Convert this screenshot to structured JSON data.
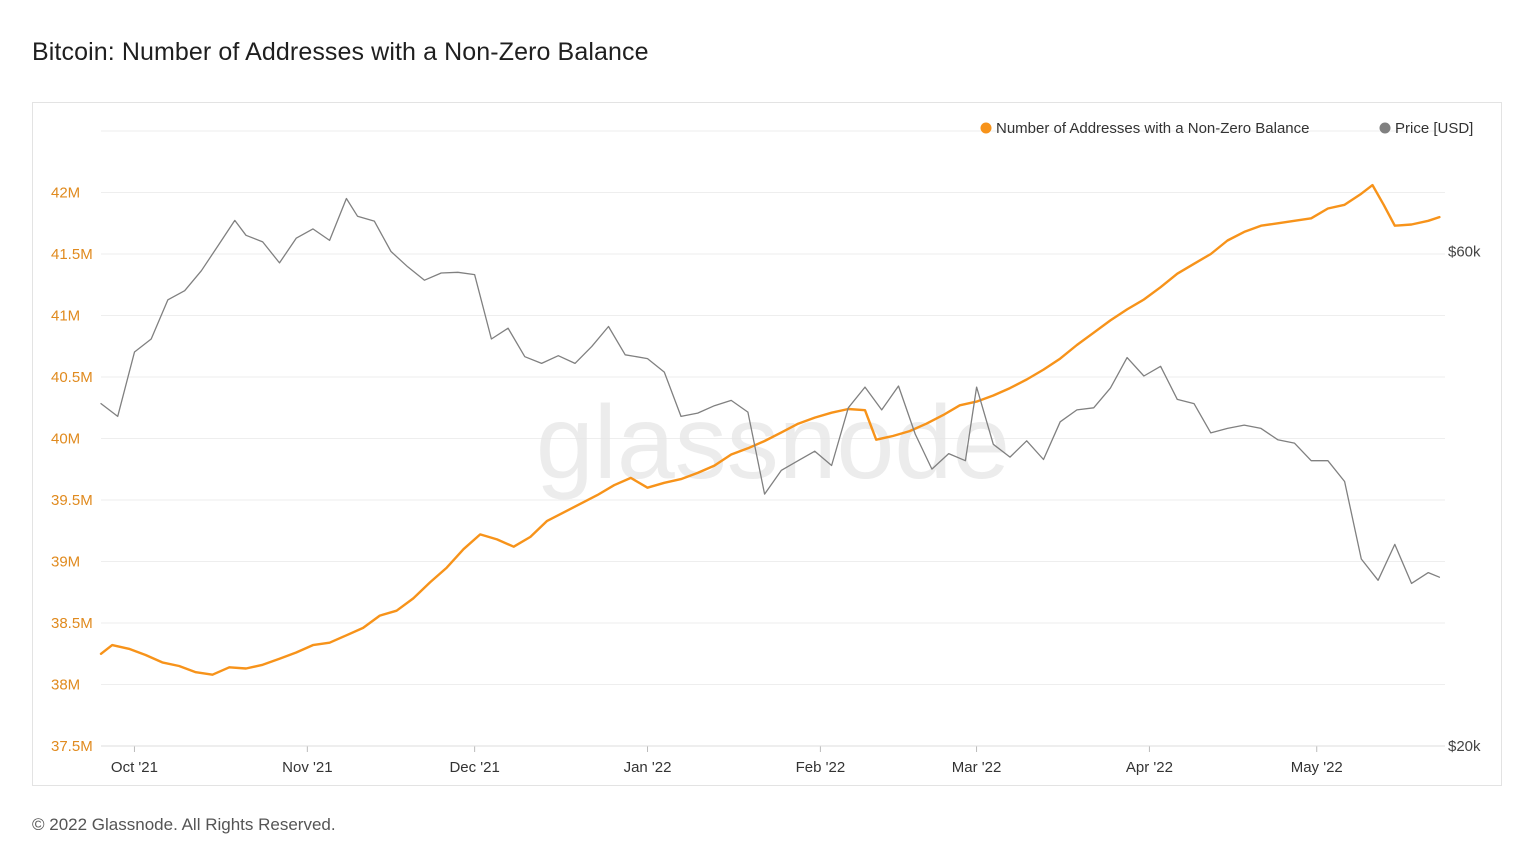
{
  "page": {
    "title": "Bitcoin: Number of Addresses with a Non-Zero Balance",
    "footer": "© 2022 Glassnode. All Rights Reserved.",
    "watermark": "glassnode"
  },
  "colors": {
    "addresses": "#f7931a",
    "price": "#808080",
    "left_axis_text": "#e08a1e",
    "right_axis_text": "#444444",
    "grid": "#eeeeee",
    "watermark": "#e6e6e6"
  },
  "chart_data": {
    "type": "line",
    "title": "Bitcoin: Number of Addresses with a Non-Zero Balance",
    "x_ticks": [
      "Oct '21",
      "Nov '21",
      "Dec '21",
      "Jan '22",
      "Feb '22",
      "Mar '22",
      "Apr '22",
      "May '22"
    ],
    "x_tick_dates": [
      "2021-10-01",
      "2021-11-01",
      "2021-12-01",
      "2022-01-01",
      "2022-02-01",
      "2022-03-01",
      "2022-04-01",
      "2022-05-01"
    ],
    "x_range": [
      "2021-09-25",
      "2022-05-24"
    ],
    "y_left": {
      "ticks": [
        37500000,
        38000000,
        38500000,
        39000000,
        39500000,
        40000000,
        40500000,
        41000000,
        41500000,
        42000000
      ],
      "tick_labels": [
        "37.5M",
        "38M",
        "38.5M",
        "39M",
        "39.5M",
        "40M",
        "40.5M",
        "41M",
        "41.5M",
        "42M"
      ],
      "range": [
        37500000,
        42500000
      ]
    },
    "y_right": {
      "scale": "log",
      "ticks": [
        20000,
        60000
      ],
      "tick_labels": [
        "$20k",
        "$60k"
      ]
    },
    "legend": {
      "placement": "top-right"
    },
    "grid": true,
    "series": [
      {
        "name": "Number of Addresses with a Non-Zero Balance",
        "axis": "left",
        "color": "#f7931a",
        "points": [
          [
            "2021-09-25",
            38250000
          ],
          [
            "2021-09-27",
            38320000
          ],
          [
            "2021-09-30",
            38290000
          ],
          [
            "2021-10-03",
            38240000
          ],
          [
            "2021-10-06",
            38180000
          ],
          [
            "2021-10-09",
            38150000
          ],
          [
            "2021-10-12",
            38100000
          ],
          [
            "2021-10-15",
            38080000
          ],
          [
            "2021-10-18",
            38140000
          ],
          [
            "2021-10-21",
            38130000
          ],
          [
            "2021-10-24",
            38160000
          ],
          [
            "2021-10-27",
            38210000
          ],
          [
            "2021-10-30",
            38260000
          ],
          [
            "2021-11-02",
            38320000
          ],
          [
            "2021-11-05",
            38340000
          ],
          [
            "2021-11-08",
            38400000
          ],
          [
            "2021-11-11",
            38460000
          ],
          [
            "2021-11-14",
            38560000
          ],
          [
            "2021-11-17",
            38600000
          ],
          [
            "2021-11-20",
            38700000
          ],
          [
            "2021-11-23",
            38830000
          ],
          [
            "2021-11-26",
            38950000
          ],
          [
            "2021-11-29",
            39100000
          ],
          [
            "2021-12-02",
            39220000
          ],
          [
            "2021-12-05",
            39180000
          ],
          [
            "2021-12-08",
            39120000
          ],
          [
            "2021-12-11",
            39200000
          ],
          [
            "2021-12-14",
            39330000
          ],
          [
            "2021-12-17",
            39400000
          ],
          [
            "2021-12-20",
            39470000
          ],
          [
            "2021-12-23",
            39540000
          ],
          [
            "2021-12-26",
            39620000
          ],
          [
            "2021-12-29",
            39680000
          ],
          [
            "2022-01-01",
            39600000
          ],
          [
            "2022-01-04",
            39640000
          ],
          [
            "2022-01-07",
            39670000
          ],
          [
            "2022-01-10",
            39720000
          ],
          [
            "2022-01-13",
            39780000
          ],
          [
            "2022-01-16",
            39870000
          ],
          [
            "2022-01-19",
            39920000
          ],
          [
            "2022-01-22",
            39980000
          ],
          [
            "2022-01-25",
            40050000
          ],
          [
            "2022-01-28",
            40120000
          ],
          [
            "2022-01-31",
            40170000
          ],
          [
            "2022-02-03",
            40210000
          ],
          [
            "2022-02-06",
            40240000
          ],
          [
            "2022-02-09",
            40230000
          ],
          [
            "2022-02-11",
            39990000
          ],
          [
            "2022-02-14",
            40020000
          ],
          [
            "2022-02-17",
            40060000
          ],
          [
            "2022-02-20",
            40120000
          ],
          [
            "2022-02-23",
            40190000
          ],
          [
            "2022-02-26",
            40270000
          ],
          [
            "2022-03-01",
            40300000
          ],
          [
            "2022-03-04",
            40350000
          ],
          [
            "2022-03-07",
            40410000
          ],
          [
            "2022-03-10",
            40480000
          ],
          [
            "2022-03-13",
            40560000
          ],
          [
            "2022-03-16",
            40650000
          ],
          [
            "2022-03-19",
            40760000
          ],
          [
            "2022-03-22",
            40860000
          ],
          [
            "2022-03-25",
            40960000
          ],
          [
            "2022-03-28",
            41050000
          ],
          [
            "2022-03-31",
            41130000
          ],
          [
            "2022-04-03",
            41230000
          ],
          [
            "2022-04-06",
            41340000
          ],
          [
            "2022-04-09",
            41420000
          ],
          [
            "2022-04-12",
            41500000
          ],
          [
            "2022-04-15",
            41610000
          ],
          [
            "2022-04-18",
            41680000
          ],
          [
            "2022-04-21",
            41730000
          ],
          [
            "2022-04-24",
            41750000
          ],
          [
            "2022-04-27",
            41770000
          ],
          [
            "2022-04-30",
            41790000
          ],
          [
            "2022-05-03",
            41870000
          ],
          [
            "2022-05-06",
            41900000
          ],
          [
            "2022-05-09",
            41990000
          ],
          [
            "2022-05-11",
            42060000
          ],
          [
            "2022-05-13",
            41900000
          ],
          [
            "2022-05-15",
            41730000
          ],
          [
            "2022-05-18",
            41740000
          ],
          [
            "2022-05-21",
            41770000
          ],
          [
            "2022-05-23",
            41800000
          ]
        ]
      },
      {
        "name": "Price [USD]",
        "axis": "right",
        "color": "#808080",
        "points": [
          [
            "2021-09-25",
            42800
          ],
          [
            "2021-09-28",
            41600
          ],
          [
            "2021-10-01",
            48000
          ],
          [
            "2021-10-04",
            49400
          ],
          [
            "2021-10-07",
            53900
          ],
          [
            "2021-10-10",
            55000
          ],
          [
            "2021-10-13",
            57500
          ],
          [
            "2021-10-16",
            60800
          ],
          [
            "2021-10-19",
            64300
          ],
          [
            "2021-10-21",
            62200
          ],
          [
            "2021-10-24",
            61300
          ],
          [
            "2021-10-27",
            58500
          ],
          [
            "2021-10-30",
            61800
          ],
          [
            "2021-11-02",
            63100
          ],
          [
            "2021-11-05",
            61500
          ],
          [
            "2021-11-08",
            67500
          ],
          [
            "2021-11-10",
            64900
          ],
          [
            "2021-11-13",
            64200
          ],
          [
            "2021-11-16",
            60000
          ],
          [
            "2021-11-19",
            58000
          ],
          [
            "2021-11-22",
            56300
          ],
          [
            "2021-11-25",
            57200
          ],
          [
            "2021-11-28",
            57300
          ],
          [
            "2021-12-01",
            57000
          ],
          [
            "2021-12-04",
            49400
          ],
          [
            "2021-12-07",
            50600
          ],
          [
            "2021-12-10",
            47500
          ],
          [
            "2021-12-13",
            46800
          ],
          [
            "2021-12-16",
            47600
          ],
          [
            "2021-12-19",
            46800
          ],
          [
            "2021-12-22",
            48600
          ],
          [
            "2021-12-25",
            50800
          ],
          [
            "2021-12-28",
            47700
          ],
          [
            "2022-01-01",
            47300
          ],
          [
            "2022-01-04",
            45900
          ],
          [
            "2022-01-07",
            41600
          ],
          [
            "2022-01-10",
            41900
          ],
          [
            "2022-01-13",
            42600
          ],
          [
            "2022-01-16",
            43100
          ],
          [
            "2022-01-19",
            42000
          ],
          [
            "2022-01-22",
            35000
          ],
          [
            "2022-01-25",
            36900
          ],
          [
            "2022-01-28",
            37700
          ],
          [
            "2022-01-31",
            38500
          ],
          [
            "2022-02-03",
            37300
          ],
          [
            "2022-02-06",
            42400
          ],
          [
            "2022-02-09",
            44400
          ],
          [
            "2022-02-12",
            42200
          ],
          [
            "2022-02-15",
            44500
          ],
          [
            "2022-02-18",
            40000
          ],
          [
            "2022-02-21",
            37000
          ],
          [
            "2022-02-24",
            38300
          ],
          [
            "2022-02-27",
            37700
          ],
          [
            "2022-03-01",
            44400
          ],
          [
            "2022-03-04",
            39100
          ],
          [
            "2022-03-07",
            38000
          ],
          [
            "2022-03-10",
            39400
          ],
          [
            "2022-03-13",
            37800
          ],
          [
            "2022-03-16",
            41100
          ],
          [
            "2022-03-19",
            42200
          ],
          [
            "2022-03-22",
            42400
          ],
          [
            "2022-03-25",
            44300
          ],
          [
            "2022-03-28",
            47400
          ],
          [
            "2022-03-31",
            45500
          ],
          [
            "2022-04-03",
            46500
          ],
          [
            "2022-04-06",
            43200
          ],
          [
            "2022-04-09",
            42800
          ],
          [
            "2022-04-12",
            40100
          ],
          [
            "2022-04-15",
            40500
          ],
          [
            "2022-04-18",
            40800
          ],
          [
            "2022-04-21",
            40500
          ],
          [
            "2022-04-24",
            39500
          ],
          [
            "2022-04-27",
            39200
          ],
          [
            "2022-04-30",
            37700
          ],
          [
            "2022-05-03",
            37700
          ],
          [
            "2022-05-06",
            36000
          ],
          [
            "2022-05-09",
            30300
          ],
          [
            "2022-05-12",
            28900
          ],
          [
            "2022-05-15",
            31300
          ],
          [
            "2022-05-18",
            28700
          ],
          [
            "2022-05-21",
            29400
          ],
          [
            "2022-05-23",
            29100
          ]
        ]
      }
    ]
  }
}
